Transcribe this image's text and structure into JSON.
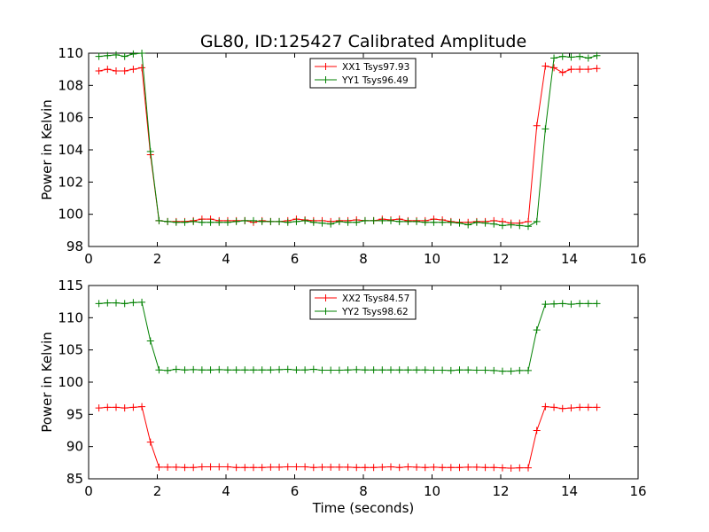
{
  "title": "GL80, ID:125427 Calibrated Amplitude",
  "chart_data": [
    {
      "type": "line",
      "title": "GL80, ID:125427 Calibrated Amplitude",
      "xlabel": "",
      "ylabel": "Power in Kelvin",
      "xlim": [
        0,
        16
      ],
      "ylim": [
        98,
        110
      ],
      "xticks": [
        "0",
        "2",
        "4",
        "6",
        "8",
        "10",
        "12",
        "14",
        "16"
      ],
      "yticks": [
        "98",
        "100",
        "102",
        "104",
        "106",
        "108",
        "110"
      ],
      "grid": false,
      "legend_position": "top-center",
      "x": [
        0.3,
        0.55,
        0.8,
        1.05,
        1.3,
        1.55,
        1.8,
        2.05,
        2.3,
        2.55,
        2.8,
        3.05,
        3.3,
        3.55,
        3.8,
        4.05,
        4.3,
        4.55,
        4.8,
        5.05,
        5.3,
        5.55,
        5.8,
        6.05,
        6.3,
        6.55,
        6.8,
        7.05,
        7.3,
        7.55,
        7.8,
        8.05,
        8.3,
        8.55,
        8.8,
        9.05,
        9.3,
        9.55,
        9.8,
        10.05,
        10.3,
        10.55,
        10.8,
        11.05,
        11.3,
        11.55,
        11.8,
        12.05,
        12.3,
        12.55,
        12.8,
        13.05,
        13.3,
        13.55,
        13.8,
        14.05,
        14.3,
        14.55,
        14.8
      ],
      "series": [
        {
          "name": "XX1 Tsys97.93",
          "color": "#ff0000",
          "values": [
            108.9,
            109.0,
            108.9,
            108.9,
            109.0,
            109.1,
            103.7,
            99.6,
            99.55,
            99.55,
            99.55,
            99.6,
            99.7,
            99.7,
            99.6,
            99.6,
            99.6,
            99.6,
            99.5,
            99.6,
            99.55,
            99.55,
            99.6,
            99.7,
            99.65,
            99.6,
            99.6,
            99.55,
            99.6,
            99.6,
            99.65,
            99.6,
            99.6,
            99.7,
            99.65,
            99.7,
            99.6,
            99.6,
            99.6,
            99.7,
            99.65,
            99.55,
            99.5,
            99.5,
            99.55,
            99.55,
            99.6,
            99.55,
            99.45,
            99.45,
            99.55,
            105.5,
            109.2,
            109.1,
            108.8,
            109.0,
            109.0,
            109.0,
            109.05
          ]
        },
        {
          "name": "YY1 Tsys96.49",
          "color": "#008000",
          "values": [
            109.8,
            109.85,
            109.9,
            109.8,
            109.95,
            110.0,
            103.9,
            99.6,
            99.55,
            99.5,
            99.5,
            99.55,
            99.5,
            99.5,
            99.5,
            99.5,
            99.55,
            99.6,
            99.6,
            99.55,
            99.55,
            99.55,
            99.5,
            99.55,
            99.6,
            99.5,
            99.45,
            99.4,
            99.55,
            99.5,
            99.5,
            99.6,
            99.6,
            99.6,
            99.6,
            99.55,
            99.55,
            99.55,
            99.5,
            99.5,
            99.5,
            99.5,
            99.45,
            99.35,
            99.5,
            99.45,
            99.4,
            99.3,
            99.35,
            99.3,
            99.25,
            99.55,
            105.3,
            109.7,
            109.8,
            109.75,
            109.8,
            109.7,
            109.85
          ]
        }
      ]
    },
    {
      "type": "line",
      "title": "",
      "xlabel": "Time (seconds)",
      "ylabel": "Power in Kelvin",
      "xlim": [
        0,
        16
      ],
      "ylim": [
        85,
        115
      ],
      "xticks": [
        "0",
        "2",
        "4",
        "6",
        "8",
        "10",
        "12",
        "14",
        "16"
      ],
      "yticks": [
        "85",
        "90",
        "95",
        "100",
        "105",
        "110",
        "115"
      ],
      "grid": false,
      "legend_position": "top-center",
      "x": [
        0.3,
        0.55,
        0.8,
        1.05,
        1.3,
        1.55,
        1.8,
        2.05,
        2.3,
        2.55,
        2.8,
        3.05,
        3.3,
        3.55,
        3.8,
        4.05,
        4.3,
        4.55,
        4.8,
        5.05,
        5.3,
        5.55,
        5.8,
        6.05,
        6.3,
        6.55,
        6.8,
        7.05,
        7.3,
        7.55,
        7.8,
        8.05,
        8.3,
        8.55,
        8.8,
        9.05,
        9.3,
        9.55,
        9.8,
        10.05,
        10.3,
        10.55,
        10.8,
        11.05,
        11.3,
        11.55,
        11.8,
        12.05,
        12.3,
        12.55,
        12.8,
        13.05,
        13.3,
        13.55,
        13.8,
        14.05,
        14.3,
        14.55,
        14.8
      ],
      "series": [
        {
          "name": "XX2 Tsys84.57",
          "color": "#ff0000",
          "values": [
            96.0,
            96.1,
            96.1,
            96.0,
            96.1,
            96.2,
            90.7,
            86.8,
            86.8,
            86.8,
            86.75,
            86.75,
            86.85,
            86.85,
            86.85,
            86.85,
            86.75,
            86.75,
            86.75,
            86.75,
            86.8,
            86.8,
            86.85,
            86.85,
            86.85,
            86.75,
            86.8,
            86.8,
            86.8,
            86.8,
            86.75,
            86.75,
            86.75,
            86.8,
            86.85,
            86.75,
            86.85,
            86.8,
            86.75,
            86.8,
            86.75,
            86.75,
            86.75,
            86.8,
            86.8,
            86.75,
            86.75,
            86.7,
            86.65,
            86.7,
            86.7,
            92.5,
            96.2,
            96.1,
            95.9,
            96.0,
            96.1,
            96.1,
            96.1
          ]
        },
        {
          "name": "YY2 Tsys98.62",
          "color": "#008000",
          "values": [
            112.2,
            112.3,
            112.3,
            112.2,
            112.35,
            112.4,
            106.4,
            101.9,
            101.8,
            102.0,
            101.9,
            101.95,
            101.9,
            101.9,
            101.95,
            101.9,
            101.9,
            101.9,
            101.9,
            101.9,
            101.9,
            101.95,
            102.0,
            101.9,
            101.9,
            102.0,
            101.85,
            101.85,
            101.85,
            101.9,
            101.95,
            101.9,
            101.9,
            101.9,
            101.9,
            101.9,
            101.9,
            101.9,
            101.9,
            101.85,
            101.85,
            101.8,
            101.9,
            101.9,
            101.85,
            101.85,
            101.8,
            101.7,
            101.7,
            101.8,
            101.8,
            108.1,
            112.1,
            112.15,
            112.2,
            112.1,
            112.2,
            112.2,
            112.2
          ]
        }
      ]
    }
  ]
}
